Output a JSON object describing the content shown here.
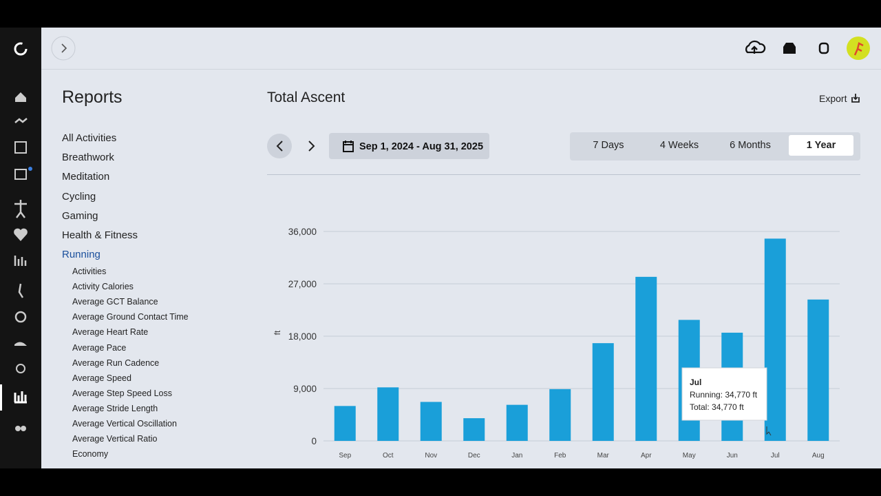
{
  "reports_title": "Reports",
  "menu": [
    "All Activities",
    "Breathwork",
    "Meditation",
    "Cycling",
    "Gaming",
    "Health & Fitness",
    "Running"
  ],
  "submenu": [
    "Activities",
    "Activity Calories",
    "Average GCT Balance",
    "Average Ground Contact Time",
    "Average Heart Rate",
    "Average Pace",
    "Average Run Cadence",
    "Average Speed",
    "Average Step Speed Loss",
    "Average Stride Length",
    "Average Vertical Oscillation",
    "Average Vertical Ratio",
    "Economy"
  ],
  "report_title": "Total Ascent",
  "export": "Export",
  "date_range": "Sep 1, 2024 - Aug 31, 2025",
  "ranges": [
    "7 Days",
    "4 Weeks",
    "6 Months",
    "1 Year"
  ],
  "tooltip": {
    "title": "Jul",
    "lines": [
      "Running: 34,770 ft",
      "Total: 34,770 ft"
    ]
  },
  "chart_data": {
    "type": "bar",
    "categories": [
      "Sep",
      "Oct",
      "Nov",
      "Dec",
      "Jan",
      "Feb",
      "Mar",
      "Apr",
      "May",
      "Jun",
      "Jul",
      "Aug"
    ],
    "series": [
      {
        "name": "Running",
        "color": "#1a9fd9",
        "values": [
          6000,
          9200,
          6700,
          3900,
          6200,
          8900,
          16800,
          28200,
          20800,
          18600,
          34770,
          24300
        ]
      }
    ],
    "ylabel": "ft",
    "ylim": [
      0,
      36000
    ],
    "yticks": [
      0,
      {
        "value": 9000,
        "label": "9,000"
      },
      {
        "value": 18000,
        "label": "18,000"
      },
      {
        "value": 27000,
        "label": "27,000"
      },
      {
        "value": 36000,
        "label": "36,000"
      }
    ],
    "grid": true
  }
}
